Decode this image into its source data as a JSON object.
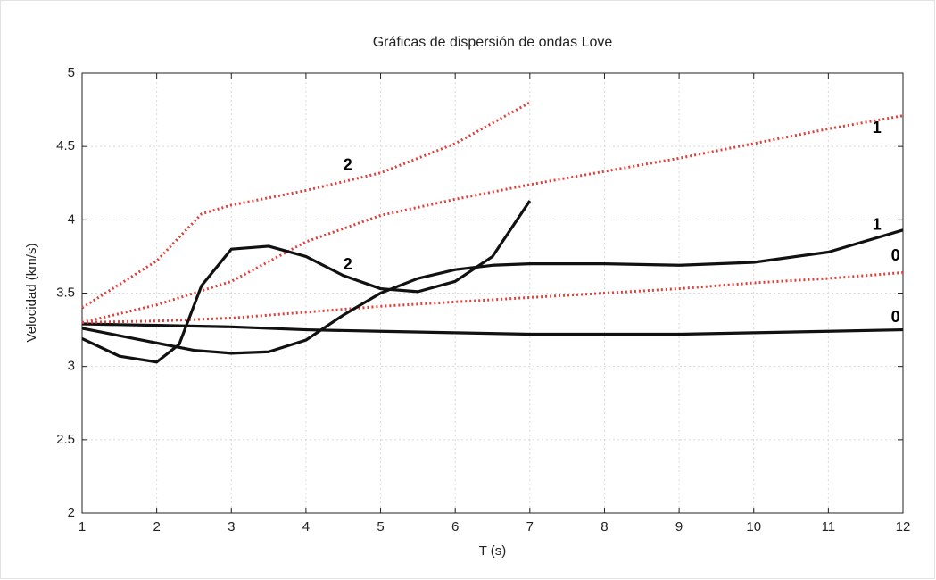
{
  "chart_data": {
    "type": "line",
    "title": "Gráficas de dispersión de ondas Love",
    "xlabel": "T (s)",
    "ylabel": "Velocidad  (km/s)",
    "xlim": [
      1,
      12
    ],
    "ylim": [
      2,
      5
    ],
    "xticks": [
      1,
      2,
      3,
      4,
      5,
      6,
      7,
      8,
      9,
      10,
      11,
      12
    ],
    "yticks": [
      2,
      2.5,
      3,
      3.5,
      4,
      4.5,
      5
    ],
    "grid": true,
    "series": [
      {
        "color": "#111111",
        "style": "solid",
        "x": [
          1,
          2,
          3,
          4,
          5,
          6,
          7,
          8,
          9,
          10,
          11,
          12
        ],
        "values": [
          3.29,
          3.28,
          3.27,
          3.25,
          3.24,
          3.23,
          3.22,
          3.22,
          3.22,
          3.23,
          3.24,
          3.25
        ]
      },
      {
        "color": "#e0403c",
        "style": "dotted",
        "x": [
          1,
          2,
          3,
          4,
          5,
          6,
          7,
          8,
          9,
          10,
          11,
          12
        ],
        "values": [
          3.3,
          3.31,
          3.33,
          3.37,
          3.41,
          3.44,
          3.47,
          3.5,
          3.53,
          3.57,
          3.6,
          3.64
        ]
      },
      {
        "color": "#111111",
        "style": "solid",
        "x": [
          1,
          1.5,
          2,
          2.5,
          3,
          3.5,
          4,
          4.5,
          5,
          5.5,
          6,
          6.5,
          7,
          8,
          9,
          10,
          11,
          12
        ],
        "values": [
          3.26,
          3.21,
          3.16,
          3.11,
          3.09,
          3.1,
          3.18,
          3.35,
          3.5,
          3.6,
          3.66,
          3.69,
          3.7,
          3.7,
          3.69,
          3.71,
          3.78,
          3.93
        ]
      },
      {
        "color": "#e0403c",
        "style": "dotted",
        "x": [
          1,
          2,
          3,
          4,
          5,
          6,
          7,
          8,
          9,
          10,
          11,
          12
        ],
        "values": [
          3.3,
          3.42,
          3.58,
          3.85,
          4.03,
          4.14,
          4.24,
          4.33,
          4.42,
          4.52,
          4.62,
          4.71
        ]
      },
      {
        "color": "#111111",
        "style": "solid",
        "x": [
          1,
          1.5,
          2,
          2.3,
          2.6,
          3,
          3.5,
          4,
          4.5,
          5,
          5.5,
          6,
          6.5,
          7
        ],
        "values": [
          3.19,
          3.07,
          3.03,
          3.15,
          3.55,
          3.8,
          3.82,
          3.75,
          3.62,
          3.53,
          3.51,
          3.58,
          3.75,
          4.13
        ]
      },
      {
        "color": "#e0403c",
        "style": "dotted",
        "x": [
          1,
          2,
          2.6,
          3,
          4,
          5,
          6,
          7
        ],
        "values": [
          3.4,
          3.72,
          4.04,
          4.1,
          4.2,
          4.32,
          4.52,
          4.8
        ]
      }
    ],
    "annotations": [
      {
        "text": "2",
        "x": 4.56,
        "y": 4.37
      },
      {
        "text": "2",
        "x": 4.56,
        "y": 3.69
      },
      {
        "text": "1",
        "x": 11.65,
        "y": 4.62
      },
      {
        "text": "1",
        "x": 11.65,
        "y": 3.96
      },
      {
        "text": "0",
        "x": 11.9,
        "y": 3.75
      },
      {
        "text": "0",
        "x": 11.9,
        "y": 3.33
      }
    ]
  }
}
